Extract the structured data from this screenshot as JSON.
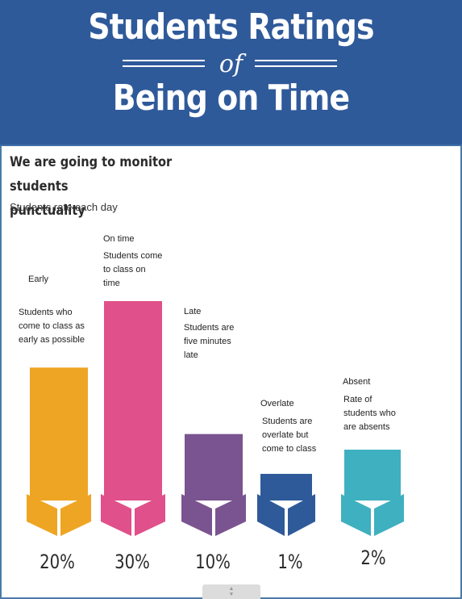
{
  "header": {
    "title_line1": "Students Ratings",
    "title_of": "of",
    "title_line2": "Being on Time",
    "background": "#2f5a9a"
  },
  "intro": {
    "heading_line1": "We are going to monitor students",
    "heading_line2": "punctuality",
    "subheading": "Students rate each day"
  },
  "chart_data": {
    "type": "bar",
    "categories": [
      "Early",
      "On time",
      "Late",
      "Overlate",
      "Absent"
    ],
    "descriptions": [
      [
        "Students who",
        "come to class as",
        "early as possible"
      ],
      [
        "Students come",
        "to class on",
        "time"
      ],
      [
        "Students are",
        "five minutes",
        "late"
      ],
      [
        "Students are",
        "overlate but",
        "come to class"
      ],
      [
        "Rate of",
        "students who",
        "are absents"
      ]
    ],
    "values": [
      20,
      30,
      10,
      1,
      2
    ],
    "labels": [
      "20%",
      "30%",
      "10%",
      "1%",
      "2%"
    ],
    "colors": [
      "#eea523",
      "#e0508a",
      "#7a5490",
      "#2f5a9a",
      "#3fb0c0"
    ]
  },
  "scroll_handle": {
    "icon": "up-down-arrows-icon"
  }
}
